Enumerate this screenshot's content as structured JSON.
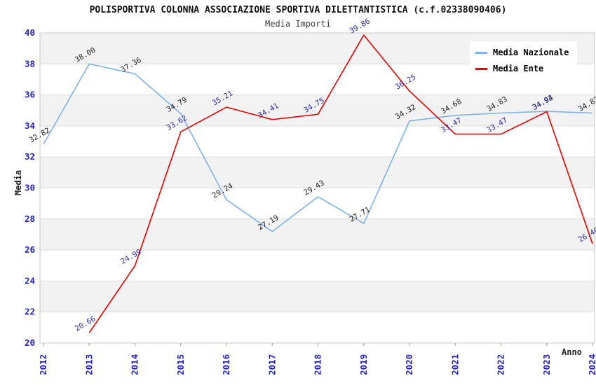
{
  "chart_data": {
    "type": "line",
    "title": "POLISPORTIVA COLONNA ASSOCIAZIONE SPORTIVA DILETTANTISTICA (c.f.02338090406)",
    "subtitle": "Media Importi",
    "xlabel": "Anno",
    "ylabel": "Media",
    "x": [
      "2012",
      "2013",
      "2014",
      "2015",
      "2016",
      "2017",
      "2018",
      "2019",
      "2020",
      "2021",
      "2022",
      "2023",
      "2024"
    ],
    "ylim": [
      20,
      40
    ],
    "ytick_step": 2,
    "grid": "horizontal gridlines with alternating gray bands",
    "legend_position": "top-right",
    "series": [
      {
        "name": "Media Nazionale",
        "color": "#7FB2E8",
        "label_color": "#1a1a1a",
        "values": [
          32.82,
          38.0,
          37.36,
          34.79,
          29.24,
          27.19,
          29.43,
          27.71,
          34.32,
          34.68,
          34.83,
          34.94,
          34.83
        ]
      },
      {
        "name": "Media Ente",
        "color": "#EE0000",
        "label_color": "#2B2BA8",
        "values": [
          null,
          20.66,
          24.99,
          33.62,
          35.21,
          34.41,
          34.75,
          39.86,
          36.25,
          33.47,
          33.47,
          34.92,
          26.4
        ]
      }
    ],
    "colors": {
      "tick_label": "#2222CC",
      "band": "#F2F2F2",
      "grid_line": "#DBDBDB",
      "plot_border": "#C9C9C9",
      "axis_tick": "#999999"
    }
  }
}
